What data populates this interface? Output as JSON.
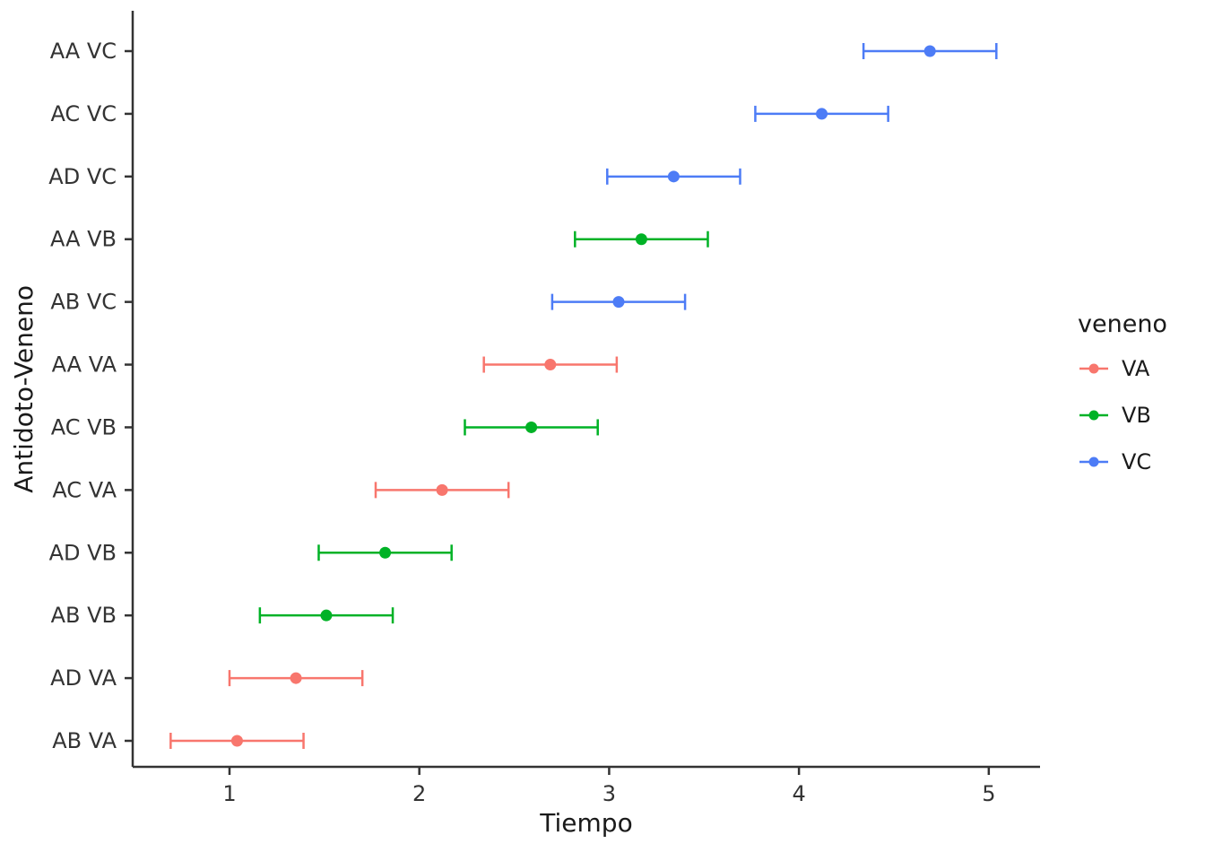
{
  "chart_data": {
    "type": "scatter",
    "subtype": "dotplot-with-error-bars",
    "title": "",
    "xlabel": "Tiempo",
    "ylabel": "Antidoto-Veneno",
    "xlim": [
      0.49,
      5.27
    ],
    "xticks": [
      1,
      2,
      3,
      4,
      5
    ],
    "grid": false,
    "legend": {
      "title": "veneno",
      "position": "right",
      "entries": [
        {
          "label": "VA",
          "color": "#F8766D"
        },
        {
          "label": "VB",
          "color": "#00B226"
        },
        {
          "label": "VC",
          "color": "#4D7CF6"
        }
      ]
    },
    "colors": {
      "VA": "#F8766D",
      "VB": "#00B226",
      "VC": "#4D7CF6"
    },
    "points": [
      {
        "category": "AA VC",
        "group": "VC",
        "value": 4.69,
        "lower": 4.34,
        "upper": 5.04
      },
      {
        "category": "AC VC",
        "group": "VC",
        "value": 4.12,
        "lower": 3.77,
        "upper": 4.47
      },
      {
        "category": "AD VC",
        "group": "VC",
        "value": 3.34,
        "lower": 2.99,
        "upper": 3.69
      },
      {
        "category": "AA VB",
        "group": "VB",
        "value": 3.17,
        "lower": 2.82,
        "upper": 3.52
      },
      {
        "category": "AB VC",
        "group": "VC",
        "value": 3.05,
        "lower": 2.7,
        "upper": 3.4
      },
      {
        "category": "AA VA",
        "group": "VA",
        "value": 2.69,
        "lower": 2.34,
        "upper": 3.04
      },
      {
        "category": "AC VB",
        "group": "VB",
        "value": 2.59,
        "lower": 2.24,
        "upper": 2.94
      },
      {
        "category": "AC VA",
        "group": "VA",
        "value": 2.12,
        "lower": 1.77,
        "upper": 2.47
      },
      {
        "category": "AD VB",
        "group": "VB",
        "value": 1.82,
        "lower": 1.47,
        "upper": 2.17
      },
      {
        "category": "AB VB",
        "group": "VB",
        "value": 1.51,
        "lower": 1.16,
        "upper": 1.86
      },
      {
        "category": "AD VA",
        "group": "VA",
        "value": 1.35,
        "lower": 1.0,
        "upper": 1.7
      },
      {
        "category": "AB VA",
        "group": "VA",
        "value": 1.04,
        "lower": 0.69,
        "upper": 1.39
      }
    ],
    "style": {
      "axis_color": "#333333",
      "tick_text_color": "#333333",
      "point_radius": 6.5,
      "line_width": 2.5,
      "cap_half_height": 9
    }
  }
}
